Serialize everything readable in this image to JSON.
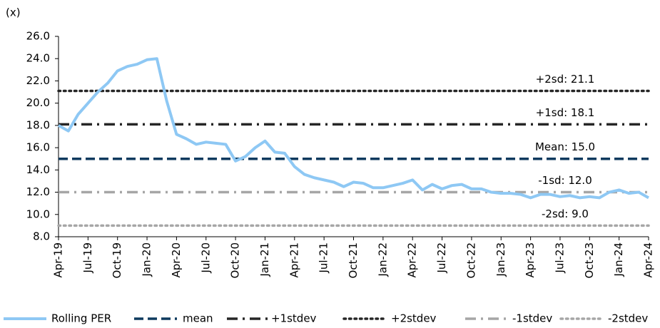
{
  "chart_data": {
    "type": "line",
    "y_label": "(x)",
    "categories": [
      "Apr-19",
      null,
      null,
      "Jul-19",
      null,
      null,
      "Oct-19",
      null,
      null,
      "Jan-20",
      null,
      null,
      "Apr-20",
      null,
      null,
      "Jul-20",
      null,
      null,
      "Oct-20",
      null,
      null,
      "Jan-21",
      null,
      null,
      "Apr-21",
      null,
      null,
      "Jul-21",
      null,
      null,
      "Oct-21",
      null,
      null,
      "Jan-22",
      null,
      null,
      "Apr-22",
      null,
      null,
      "Jul-22",
      null,
      null,
      "Oct-22",
      null,
      null,
      "Jan-23",
      null,
      null,
      "Apr-23",
      null,
      null,
      "Jul-23",
      null,
      null,
      "Oct-23",
      null,
      null,
      "Jan-24",
      null,
      null,
      "Apr-24"
    ],
    "series": [
      {
        "name": "Rolling PER",
        "color": "#8ec8f4",
        "values": [
          18.0,
          17.5,
          19.0,
          20.0,
          21.0,
          21.8,
          22.9,
          23.3,
          23.5,
          23.9,
          24.0,
          20.2,
          17.2,
          16.8,
          16.3,
          16.5,
          16.4,
          16.3,
          14.8,
          15.2,
          16.0,
          16.6,
          15.6,
          15.5,
          14.3,
          13.6,
          13.3,
          13.1,
          12.9,
          12.5,
          12.9,
          12.8,
          12.4,
          12.4,
          12.6,
          12.8,
          13.1,
          12.2,
          12.7,
          12.3,
          12.6,
          12.7,
          12.3,
          12.3,
          12.0,
          11.9,
          11.9,
          11.8,
          11.5,
          11.8,
          11.8,
          11.6,
          11.7,
          11.5,
          11.6,
          11.5,
          12.0,
          12.2,
          11.9,
          12.0,
          11.5
        ]
      },
      {
        "name": "mean",
        "color": "#0d3a5e",
        "style": "dashed",
        "value": 15.0,
        "label": "Mean: 15.0"
      },
      {
        "name": "+1stdev",
        "color": "#262626",
        "style": "dashdot",
        "value": 18.1,
        "label": "+1sd: 18.1"
      },
      {
        "name": "+2stdev",
        "color": "#262626",
        "style": "dotted",
        "value": 21.1,
        "label": "+2sd: 21.1"
      },
      {
        "name": "-1stdev",
        "color": "#a6a6a6",
        "style": "dashdot",
        "value": 12.0,
        "label": "-1sd: 12.0"
      },
      {
        "name": "-2stdev",
        "color": "#a6a6a6",
        "style": "dotted",
        "value": 9.0,
        "label": "-2sd: 9.0"
      }
    ],
    "ylim": [
      8,
      26
    ],
    "yticks": [
      {
        "value": 8,
        "label": "8.0"
      },
      {
        "value": 10,
        "label": "10.0"
      },
      {
        "value": 12,
        "label": "12.0"
      },
      {
        "value": 14,
        "label": "14.0"
      },
      {
        "value": 16,
        "label": "16.0"
      },
      {
        "value": 18,
        "label": "18.0"
      },
      {
        "value": 20,
        "label": "20.0"
      },
      {
        "value": 22,
        "label": "22.0"
      },
      {
        "value": 24,
        "label": "24.0"
      },
      {
        "value": 26,
        "label": "26.0"
      }
    ],
    "legend": "bottom"
  }
}
